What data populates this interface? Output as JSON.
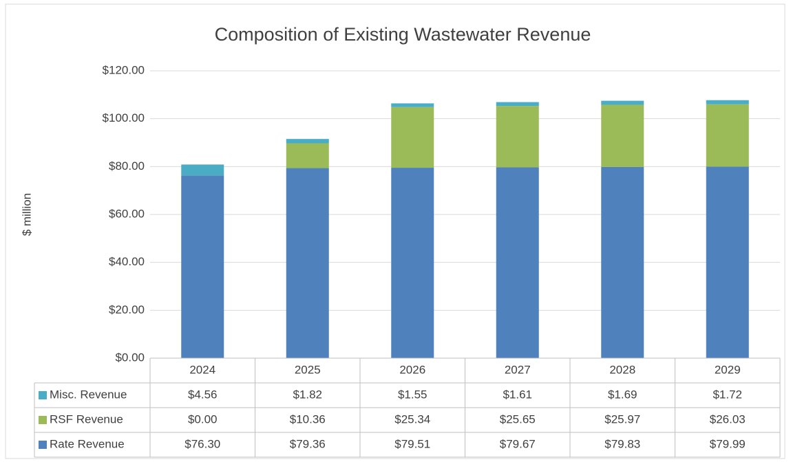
{
  "chart_data": {
    "type": "stacked_bar",
    "title": "Composition of Existing Wastewater Revenue",
    "y_label": "$ million",
    "categories": [
      "2024",
      "2025",
      "2026",
      "2027",
      "2028",
      "2029"
    ],
    "series": [
      {
        "name": "Rate Revenue",
        "color": "#4f81bd",
        "values": [
          76.3,
          79.36,
          79.51,
          79.67,
          79.83,
          79.99
        ],
        "value_labels": [
          "$76.30",
          "$79.36",
          "$79.51",
          "$79.67",
          "$79.83",
          "$79.99"
        ]
      },
      {
        "name": "RSF Revenue",
        "color": "#9bbb59",
        "values": [
          0.0,
          10.36,
          25.34,
          25.65,
          25.97,
          26.03
        ],
        "value_labels": [
          "$0.00",
          "$10.36",
          "$25.34",
          "$25.65",
          "$25.97",
          "$26.03"
        ]
      },
      {
        "name": "Misc. Revenue",
        "color": "#4bacc6",
        "values": [
          4.56,
          1.82,
          1.55,
          1.61,
          1.69,
          1.72
        ],
        "value_labels": [
          "$4.56",
          "$1.82",
          "$1.55",
          "$1.61",
          "$1.69",
          "$1.72"
        ]
      }
    ],
    "ylim": [
      0,
      120
    ],
    "yticks": [
      {
        "value": 0,
        "label": "$0.00"
      },
      {
        "value": 20,
        "label": "$20.00"
      },
      {
        "value": 40,
        "label": "$40.00"
      },
      {
        "value": 60,
        "label": "$60.00"
      },
      {
        "value": 80,
        "label": "$80.00"
      },
      {
        "value": 100,
        "label": "$100.00"
      },
      {
        "value": 120,
        "label": "$120.00"
      }
    ],
    "grid": true
  }
}
